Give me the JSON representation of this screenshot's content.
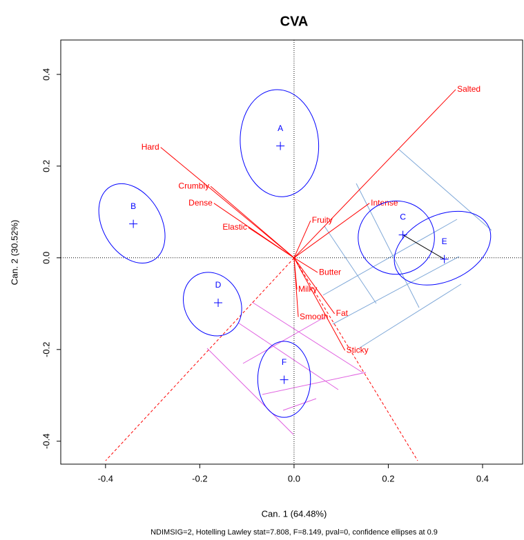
{
  "chart_data": {
    "type": "scatter",
    "title": "CVA",
    "x_label": "Can. 1 (64.48%)",
    "y_label": "Can. 2 (30.52%)",
    "footnote": "NDIMSIG=2, Hotelling Lawley stat=7.808, F=8.149, pval=0, confidence ellipses at 0.9",
    "xlim": [
      -0.495,
      0.485
    ],
    "ylim": [
      -0.45,
      0.475
    ],
    "xticks": [
      -0.4,
      -0.2,
      {
        "value": 0,
        "label": "0.0"
      },
      0.2,
      0.4
    ],
    "yticks": [
      -0.4,
      -0.2,
      {
        "value": 0,
        "label": "0.0"
      },
      0.2,
      0.4
    ],
    "groups": {
      "color": "#0000ff",
      "labels": [
        "A",
        "B",
        "C",
        "D",
        "E",
        "F"
      ],
      "x": [
        -0.029,
        -0.341,
        0.231,
        -0.161,
        0.319,
        -0.021
      ],
      "y": [
        0.244,
        0.074,
        0.05,
        -0.098,
        -0.003,
        -0.266
      ],
      "ellipse_cx": [
        -0.031,
        -0.344,
        0.217,
        -0.173,
        0.315,
        -0.021
      ],
      "ellipse_cy": [
        0.25,
        0.075,
        0.044,
        -0.101,
        0.021,
        -0.265
      ],
      "ellipse_rx": [
        0.083,
        0.062,
        0.081,
        0.059,
        0.108,
        0.056
      ],
      "ellipse_ry": [
        0.117,
        0.093,
        0.08,
        0.072,
        0.072,
        0.083
      ],
      "ellipse_angle": [
        -5,
        -30,
        0,
        -30,
        -25,
        0
      ]
    },
    "variables": {
      "color": "#ff0000",
      "labels": [
        "Salted",
        "Hard",
        "Crumbly",
        "Dense",
        "Elastic",
        "Fruity",
        "Intense",
        "Butter",
        "Milky",
        "Smooth",
        "Fat",
        "Sticky"
      ],
      "x": [
        0.343,
        -0.283,
        -0.177,
        -0.17,
        -0.097,
        0.035,
        0.16,
        0.05,
        0.006,
        0.009,
        0.086,
        0.108
      ],
      "y": [
        0.367,
        0.241,
        0.156,
        0.119,
        0.066,
        0.081,
        0.119,
        -0.032,
        -0.069,
        -0.129,
        -0.122,
        -0.202
      ]
    }
  }
}
